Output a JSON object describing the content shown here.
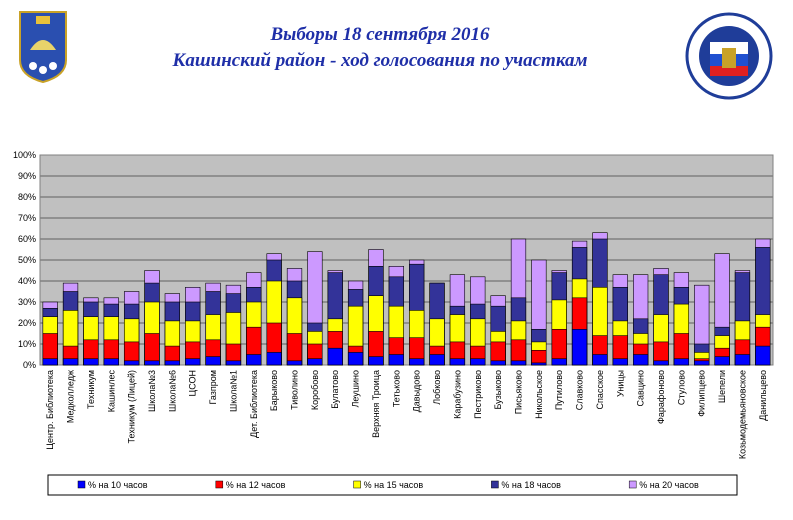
{
  "chart_data": {
    "type": "bar",
    "overlap": true,
    "title": "Выборы 18 сентября 2016",
    "subtitle": "Кашинский район - ход голосования по участкам",
    "categories": [
      "Центр. Библиотека",
      "Медколледж",
      "Техникум",
      "Кашинлес",
      "Техникум (Лицей)",
      "Школа№3",
      "Школа№6",
      "ЦСОН",
      "Газпром",
      "Школа№1",
      "Дет. Библиотека",
      "Барыково",
      "Тиволино",
      "Коробово",
      "Булатово",
      "Леушино",
      "Верхняя Троица",
      "Тетьково",
      "Давыдово",
      "Лобково",
      "Карабузино",
      "Пестриково",
      "Бузыково",
      "Письяково",
      "Никольское",
      "Путилово",
      "Славково",
      "Спасское",
      "Уницы",
      "Савцино",
      "Фарафоново",
      "Стулово",
      "Филипцево",
      "Шепели",
      "Козьмодемьяновское",
      "Данильцево"
    ],
    "series": [
      {
        "name": "% на 10 часов",
        "color": "#0000ff",
        "values": [
          3,
          3,
          3,
          3,
          2,
          2,
          2,
          3,
          4,
          2,
          5,
          6,
          2,
          3,
          8,
          6,
          4,
          5,
          3,
          5,
          3,
          3,
          2,
          2,
          1,
          3,
          17,
          5,
          3,
          5,
          2,
          3,
          2,
          4,
          5,
          9
        ]
      },
      {
        "name": "% на 12 часов",
        "color": "#ff0000",
        "values": [
          15,
          9,
          12,
          12,
          11,
          15,
          9,
          11,
          12,
          10,
          18,
          20,
          15,
          10,
          16,
          9,
          16,
          13,
          13,
          9,
          11,
          9,
          11,
          12,
          7,
          17,
          32,
          14,
          14,
          10,
          11,
          15,
          3,
          8,
          12,
          18
        ]
      },
      {
        "name": "% на 15 часов",
        "color": "#ffff00",
        "values": [
          23,
          26,
          23,
          23,
          22,
          30,
          21,
          21,
          24,
          25,
          30,
          40,
          32,
          16,
          22,
          28,
          33,
          28,
          26,
          22,
          24,
          22,
          16,
          21,
          11,
          31,
          41,
          37,
          21,
          15,
          24,
          29,
          6,
          14,
          21,
          24
        ]
      },
      {
        "name": "% на 18 часов",
        "color": "#333399",
        "values": [
          27,
          35,
          30,
          29,
          29,
          39,
          30,
          30,
          35,
          34,
          37,
          50,
          40,
          20,
          44,
          36,
          47,
          42,
          48,
          39,
          28,
          29,
          28,
          32,
          17,
          44,
          56,
          60,
          37,
          22,
          43,
          37,
          10,
          18,
          44,
          56
        ]
      },
      {
        "name": "% на 20 часов",
        "color": "#cc99ff",
        "values": [
          30,
          39,
          32,
          32,
          35,
          45,
          34,
          37,
          39,
          38,
          44,
          53,
          46,
          54,
          45,
          40,
          55,
          47,
          50,
          39,
          43,
          42,
          33,
          60,
          50,
          45,
          59,
          63,
          43,
          43,
          46,
          44,
          38,
          53,
          45,
          60
        ]
      }
    ],
    "ylim": [
      0,
      100
    ],
    "yticks": [
      {
        "value": 0,
        "label": "0%"
      },
      {
        "value": 10,
        "label": "10%"
      },
      {
        "value": 20,
        "label": "20%"
      },
      {
        "value": 30,
        "label": "30%"
      },
      {
        "value": 40,
        "label": "40%"
      },
      {
        "value": 50,
        "label": "50%"
      },
      {
        "value": 60,
        "label": "60%"
      },
      {
        "value": 70,
        "label": "70%"
      },
      {
        "value": 80,
        "label": "80%"
      },
      {
        "value": 90,
        "label": "90%"
      },
      {
        "value": 100,
        "label": "100%"
      }
    ],
    "grid": true,
    "legend": "bottom"
  }
}
